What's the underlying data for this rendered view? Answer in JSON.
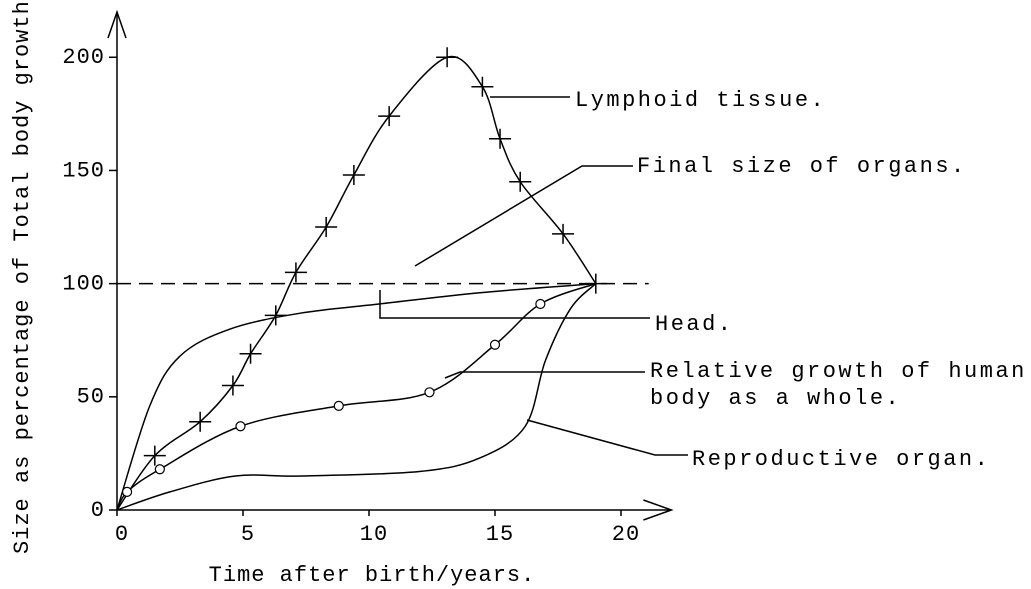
{
  "chart_data": {
    "type": "line",
    "xlabel": "Time after birth/years.",
    "ylabel": "Size as percentage of Total body growth.",
    "xlim": [
      0,
      22
    ],
    "ylim": [
      0,
      220
    ],
    "xticks": [
      0,
      5,
      10,
      15,
      20
    ],
    "yticks": [
      0,
      50,
      100,
      150,
      200
    ],
    "series": [
      {
        "name": "Lymphoid tissue.",
        "color": "#000000",
        "marker": "+",
        "x": [
          0,
          1.5,
          3.3,
          4.6,
          5.3,
          6.3,
          7.1,
          8.3,
          9.4,
          10.8,
          13.1,
          14.5,
          15.2,
          16.0,
          17.7,
          19.0
        ],
        "values": [
          0,
          24,
          39,
          55,
          69,
          86,
          105,
          125,
          148,
          174,
          200,
          187,
          164,
          145,
          122,
          100
        ]
      },
      {
        "name": "Final size of organs.",
        "color": "#000000",
        "dash": true,
        "x": [
          0,
          21.1
        ],
        "values": [
          100,
          100
        ]
      },
      {
        "name": "Head.",
        "color": "#000000",
        "x": [
          0,
          1.3,
          2.5,
          4.5,
          7.3,
          10.4,
          14.4,
          19.0
        ],
        "values": [
          0,
          46,
          68,
          80,
          87,
          91,
          96,
          100
        ]
      },
      {
        "name": "Relative growth of human body as a whole.",
        "color": "#000000",
        "marker": "o",
        "x": [
          0,
          0.4,
          1.7,
          4.9,
          8.8,
          12.4,
          15.0,
          16.8,
          19.0
        ],
        "values": [
          0,
          8,
          18,
          37,
          46,
          52,
          73,
          91,
          100
        ]
      },
      {
        "name": "Reproductive organ.",
        "color": "#000000",
        "x": [
          0,
          2.1,
          4.7,
          7.3,
          12.0,
          14.4,
          16.2,
          17.0,
          18.0,
          19.0
        ],
        "values": [
          0,
          8,
          15,
          15,
          17,
          23,
          37,
          66,
          89,
          100
        ]
      }
    ]
  }
}
